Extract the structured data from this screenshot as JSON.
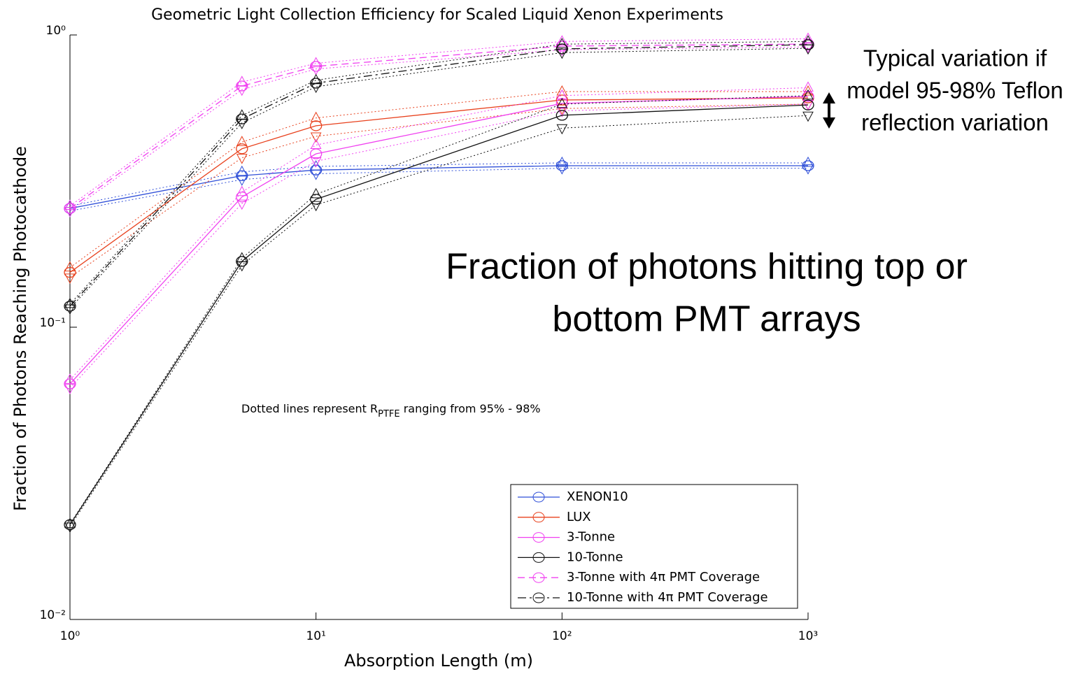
{
  "chart_data": {
    "type": "line",
    "title": "Geometric Light Collection Efficiency for Scaled Liquid Xenon Experiments",
    "xlabel": "Absorption Length (m)",
    "ylabel": "Fraction of Photons Reaching Photocathode",
    "xlog": true,
    "ylog": true,
    "xlim": [
      1,
      1000
    ],
    "ylim": [
      0.01,
      1
    ],
    "xticks": [
      {
        "value": 1,
        "label": "10⁰"
      },
      {
        "value": 10,
        "label": "10¹"
      },
      {
        "value": 100,
        "label": "10²"
      },
      {
        "value": 1000,
        "label": "10³"
      }
    ],
    "yticks": [
      {
        "value": 0.01,
        "label": "10⁻²"
      },
      {
        "value": 0.1,
        "label": "10⁻¹"
      },
      {
        "value": 1,
        "label": "10⁰"
      }
    ],
    "x": [
      1,
      5,
      10,
      100,
      1000
    ],
    "series": [
      {
        "name": "XENON10",
        "color": "#2f4fd8",
        "dash": "solid",
        "values": [
          0.255,
          0.33,
          0.345,
          0.357,
          0.357
        ],
        "high": [
          0.26,
          0.34,
          0.355,
          0.365,
          0.365
        ],
        "low": [
          0.25,
          0.32,
          0.335,
          0.35,
          0.35
        ]
      },
      {
        "name": "LUX",
        "color": "#e8401c",
        "dash": "solid",
        "values": [
          0.154,
          0.408,
          0.489,
          0.599,
          0.609
        ],
        "high": [
          0.16,
          0.43,
          0.52,
          0.64,
          0.64
        ],
        "low": [
          0.148,
          0.38,
          0.45,
          0.56,
          0.58
        ]
      },
      {
        "name": "3-Tonne",
        "color": "#f040f0",
        "dash": "solid",
        "values": [
          0.064,
          0.279,
          0.392,
          0.583,
          0.616
        ],
        "high": [
          0.066,
          0.29,
          0.42,
          0.62,
          0.66
        ],
        "low": [
          0.062,
          0.265,
          0.37,
          0.55,
          0.58
        ]
      },
      {
        "name": "10-Tonne",
        "color": "#111111",
        "dash": "solid",
        "values": [
          0.0211,
          0.168,
          0.274,
          0.531,
          0.576
        ],
        "high": [
          0.0212,
          0.172,
          0.285,
          0.58,
          0.62
        ],
        "low": [
          0.0208,
          0.163,
          0.262,
          0.48,
          0.53
        ]
      },
      {
        "name": "3-Tonne with 4π PMT Coverage",
        "color": "#f040f0",
        "dash": "dashed",
        "values": [
          0.255,
          0.669,
          0.781,
          0.916,
          0.931
        ],
        "high": [
          0.26,
          0.69,
          0.8,
          0.95,
          0.97
        ],
        "low": [
          0.25,
          0.65,
          0.765,
          0.89,
          0.91
        ]
      },
      {
        "name": "10-Tonne with 4π PMT Coverage",
        "color": "#111111",
        "dash": "dashdot",
        "values": [
          0.118,
          0.516,
          0.684,
          0.896,
          0.926
        ],
        "high": [
          0.12,
          0.53,
          0.7,
          0.93,
          0.95
        ],
        "low": [
          0.116,
          0.5,
          0.665,
          0.87,
          0.9
        ]
      }
    ],
    "annotations": {
      "dotted": [
        "Dotted lines represent R",
        "PTFE",
        " ranging from 95% - 98%"
      ],
      "variation": [
        "Typical variation if",
        "model 95-98% Teflon",
        "reflection variation"
      ],
      "fraction": [
        "Fraction of photons hitting top or",
        "bottom PMT arrays"
      ]
    }
  }
}
